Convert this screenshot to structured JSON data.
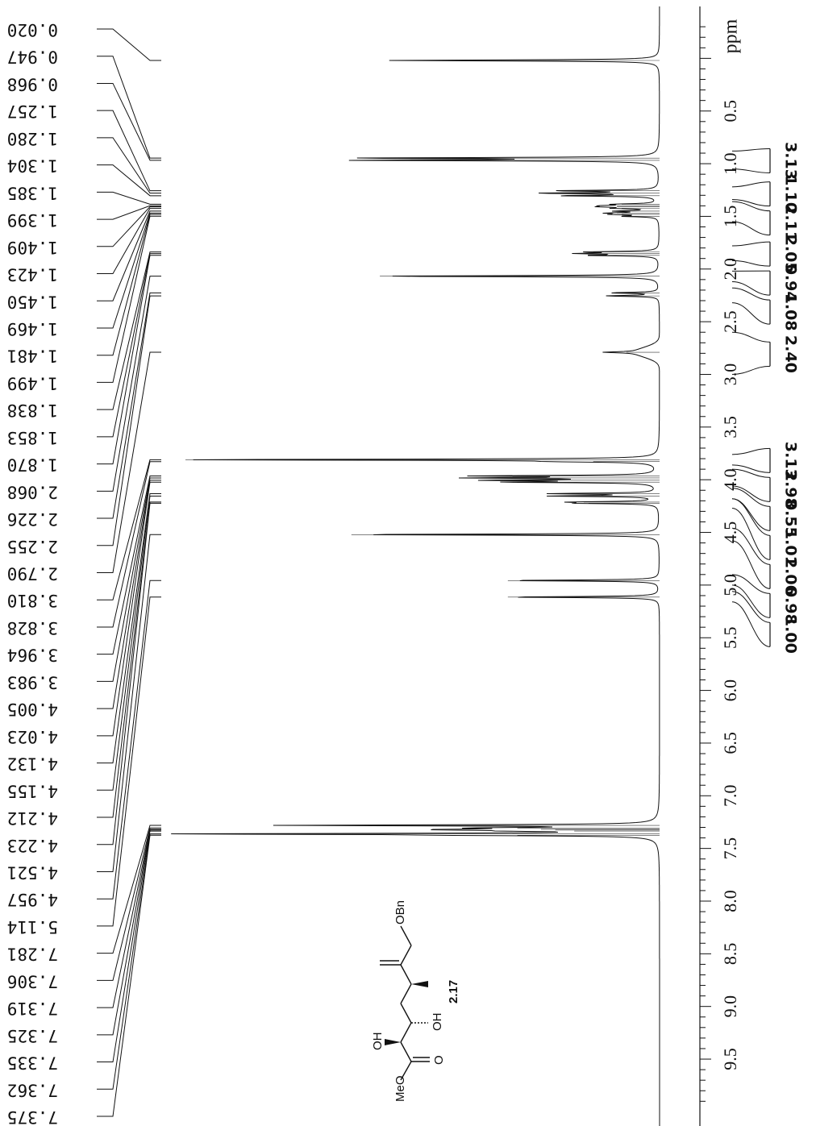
{
  "chart_data": {
    "type": "line",
    "title": "",
    "xlabel": "ppm",
    "xlim": [
      -0.35,
      9.9
    ],
    "axis_reversed": false,
    "orientation": "rotated-90",
    "ticks": [
      "0.5",
      "1.0",
      "1.5",
      "2.0",
      "2.5",
      "3.0",
      "3.5",
      "4.0",
      "4.5",
      "5.0",
      "5.5",
      "6.0",
      "6.5",
      "7.0",
      "7.5",
      "8.0",
      "8.5",
      "9.0",
      "9.5"
    ],
    "peak_list": [
      "0.020",
      "0.947",
      "0.968",
      "1.257",
      "1.280",
      "1.304",
      "1.385",
      "1.399",
      "1.409",
      "1.423",
      "1.450",
      "1.469",
      "1.481",
      "1.499",
      "1.838",
      "1.853",
      "1.870",
      "2.068",
      "2.226",
      "2.255",
      "2.790",
      "3.810",
      "3.828",
      "3.964",
      "3.983",
      "4.005",
      "4.023",
      "4.132",
      "4.155",
      "4.212",
      "4.223",
      "4.521",
      "4.957",
      "5.114",
      "7.281",
      "7.306",
      "7.319",
      "7.325",
      "7.335",
      "7.362",
      "7.375"
    ],
    "peaks": [
      {
        "ppm": 0.02,
        "height": 0.57
      },
      {
        "ppm": 0.947,
        "height": 0.62
      },
      {
        "ppm": 0.968,
        "height": 0.62
      },
      {
        "ppm": 1.257,
        "height": 0.21
      },
      {
        "ppm": 1.28,
        "height": 0.24
      },
      {
        "ppm": 1.304,
        "height": 0.2
      },
      {
        "ppm": 1.385,
        "height": 0.08
      },
      {
        "ppm": 1.399,
        "height": 0.09
      },
      {
        "ppm": 1.409,
        "height": 0.09
      },
      {
        "ppm": 1.423,
        "height": 0.08
      },
      {
        "ppm": 1.45,
        "height": 0.08
      },
      {
        "ppm": 1.469,
        "height": 0.09
      },
      {
        "ppm": 1.481,
        "height": 0.08
      },
      {
        "ppm": 1.499,
        "height": 0.07
      },
      {
        "ppm": 1.838,
        "height": 0.14
      },
      {
        "ppm": 1.853,
        "height": 0.15
      },
      {
        "ppm": 1.87,
        "height": 0.14
      },
      {
        "ppm": 2.068,
        "height": 0.59
      },
      {
        "ppm": 2.226,
        "height": 0.1
      },
      {
        "ppm": 2.255,
        "height": 0.11
      },
      {
        "ppm": 2.79,
        "height": 0.07
      },
      {
        "ppm": 3.81,
        "height": 1.0
      },
      {
        "ppm": 3.828,
        "height": 0.14
      },
      {
        "ppm": 3.964,
        "height": 0.36
      },
      {
        "ppm": 3.983,
        "height": 0.36
      },
      {
        "ppm": 4.005,
        "height": 0.33
      },
      {
        "ppm": 4.023,
        "height": 0.3
      },
      {
        "ppm": 4.132,
        "height": 0.22
      },
      {
        "ppm": 4.155,
        "height": 0.22
      },
      {
        "ppm": 4.212,
        "height": 0.16
      },
      {
        "ppm": 4.223,
        "height": 0.15
      },
      {
        "ppm": 4.521,
        "height": 0.65
      },
      {
        "ppm": 4.957,
        "height": 0.32
      },
      {
        "ppm": 5.114,
        "height": 0.32
      },
      {
        "ppm": 7.281,
        "height": 0.78
      },
      {
        "ppm": 7.306,
        "height": 0.3
      },
      {
        "ppm": 7.319,
        "height": 0.25
      },
      {
        "ppm": 7.325,
        "height": 0.22
      },
      {
        "ppm": 7.335,
        "height": 0.18
      },
      {
        "ppm": 7.362,
        "height": 0.97
      },
      {
        "ppm": 7.375,
        "height": 0.3
      }
    ],
    "integrals": [
      {
        "value": "3.13",
        "start": 0.88,
        "end": 1.05
      },
      {
        "value": "1.10",
        "start": 1.22,
        "end": 1.34
      },
      {
        "value": "2.11",
        "start": 1.36,
        "end": 1.55
      },
      {
        "value": "2.05",
        "start": 1.78,
        "end": 1.92
      },
      {
        "value": "0.94",
        "start": 2.02,
        "end": 2.12
      },
      {
        "value": "1.08",
        "start": 2.18,
        "end": 2.32
      },
      {
        "value": "2.40",
        "start": 2.6,
        "end": 3.0
      },
      {
        "value": "3.13",
        "start": 3.76,
        "end": 3.86
      },
      {
        "value": "2.98",
        "start": 3.9,
        "end": 4.06
      },
      {
        "value": "0.55",
        "start": 4.08,
        "end": 4.18
      },
      {
        "value": "1.01",
        "start": 4.18,
        "end": 4.27
      },
      {
        "value": "2.06",
        "start": 4.46,
        "end": 4.58
      },
      {
        "value": "0.98",
        "start": 4.9,
        "end": 5.0
      },
      {
        "value": "1.00",
        "start": 5.06,
        "end": 5.16
      }
    ]
  },
  "structure": {
    "compound_label": "2.17",
    "group_labels": [
      "OBn",
      "OH",
      "OH",
      "O",
      "MeO"
    ]
  }
}
